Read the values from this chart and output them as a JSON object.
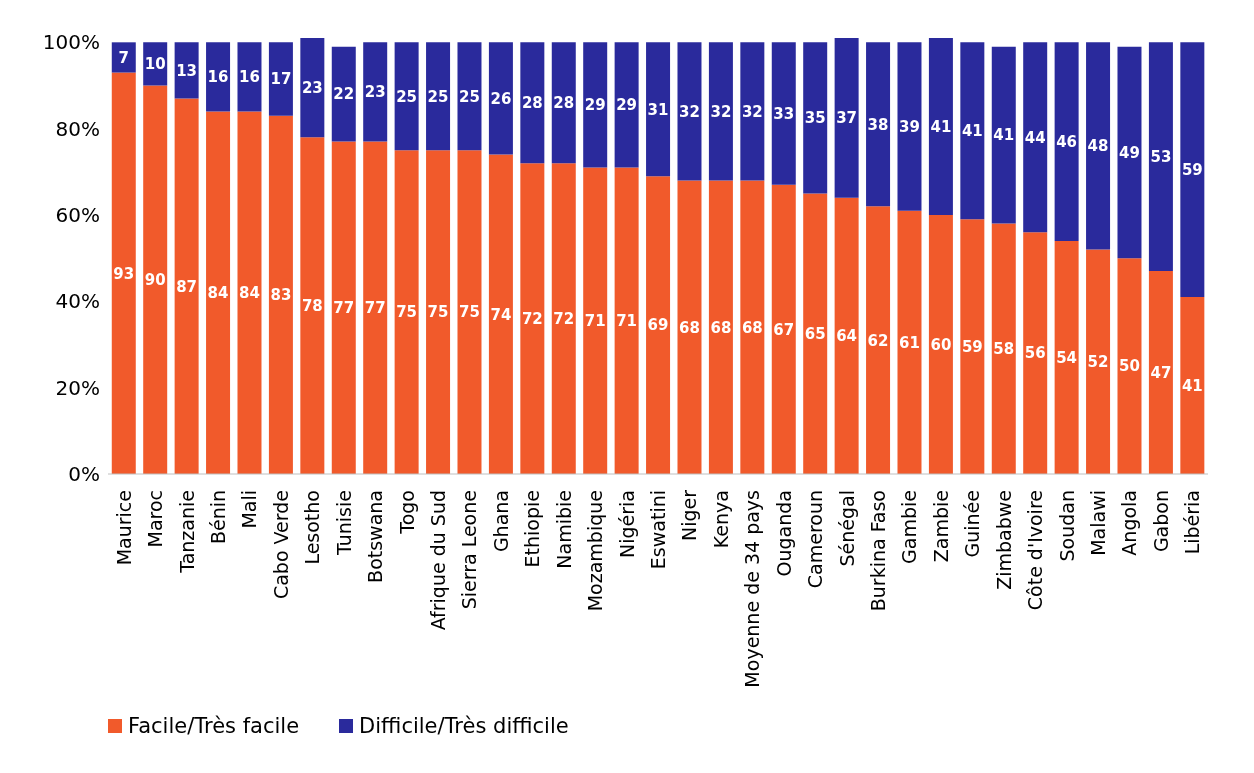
{
  "chart_data": {
    "type": "bar",
    "stacked": true,
    "categories": [
      "Maurice",
      "Maroc",
      "Tanzanie",
      "Bénin",
      "Mali",
      "Cabo Verde",
      "Lesotho",
      "Tunisie",
      "Botswana",
      "Togo",
      "Afrique du Sud",
      "Sierra Leone",
      "Ghana",
      "Ethiopie",
      "Namibie",
      "Mozambique",
      "Nigéria",
      "Eswatini",
      "Niger",
      "Kenya",
      "Moyenne de 34 pays",
      "Ouganda",
      "Cameroun",
      "Sénégal",
      "Burkina Faso",
      "Gambie",
      "Zambie",
      "Guinée",
      "Zimbabwe",
      "Côte d'Ivoire",
      "Soudan",
      "Malawi",
      "Angola",
      "Gabon",
      "Libéria"
    ],
    "series": [
      {
        "name": "Facile/Très facile",
        "color": "#f15a2b",
        "values": [
          93,
          90,
          87,
          84,
          84,
          83,
          78,
          77,
          77,
          75,
          75,
          75,
          74,
          72,
          72,
          71,
          71,
          69,
          68,
          68,
          68,
          67,
          65,
          64,
          62,
          61,
          60,
          59,
          58,
          56,
          54,
          52,
          50,
          47,
          41
        ]
      },
      {
        "name": "Difficile/Très difficile",
        "color": "#2a2a9c",
        "values": [
          7,
          10,
          13,
          16,
          16,
          17,
          23,
          22,
          23,
          25,
          25,
          25,
          26,
          28,
          28,
          29,
          29,
          31,
          32,
          32,
          32,
          33,
          35,
          37,
          38,
          39,
          41,
          41,
          41,
          44,
          46,
          48,
          49,
          53,
          59
        ]
      }
    ],
    "ylim": [
      0,
      101
    ],
    "yticks": [
      {
        "value": 0,
        "label": "0%"
      },
      {
        "value": 20,
        "label": "20%"
      },
      {
        "value": 40,
        "label": "40%"
      },
      {
        "value": 60,
        "label": "60%"
      },
      {
        "value": 80,
        "label": "80%"
      },
      {
        "value": 100,
        "label": "100%"
      }
    ],
    "data_labels": true,
    "legend": "bottom left",
    "grid": false
  }
}
